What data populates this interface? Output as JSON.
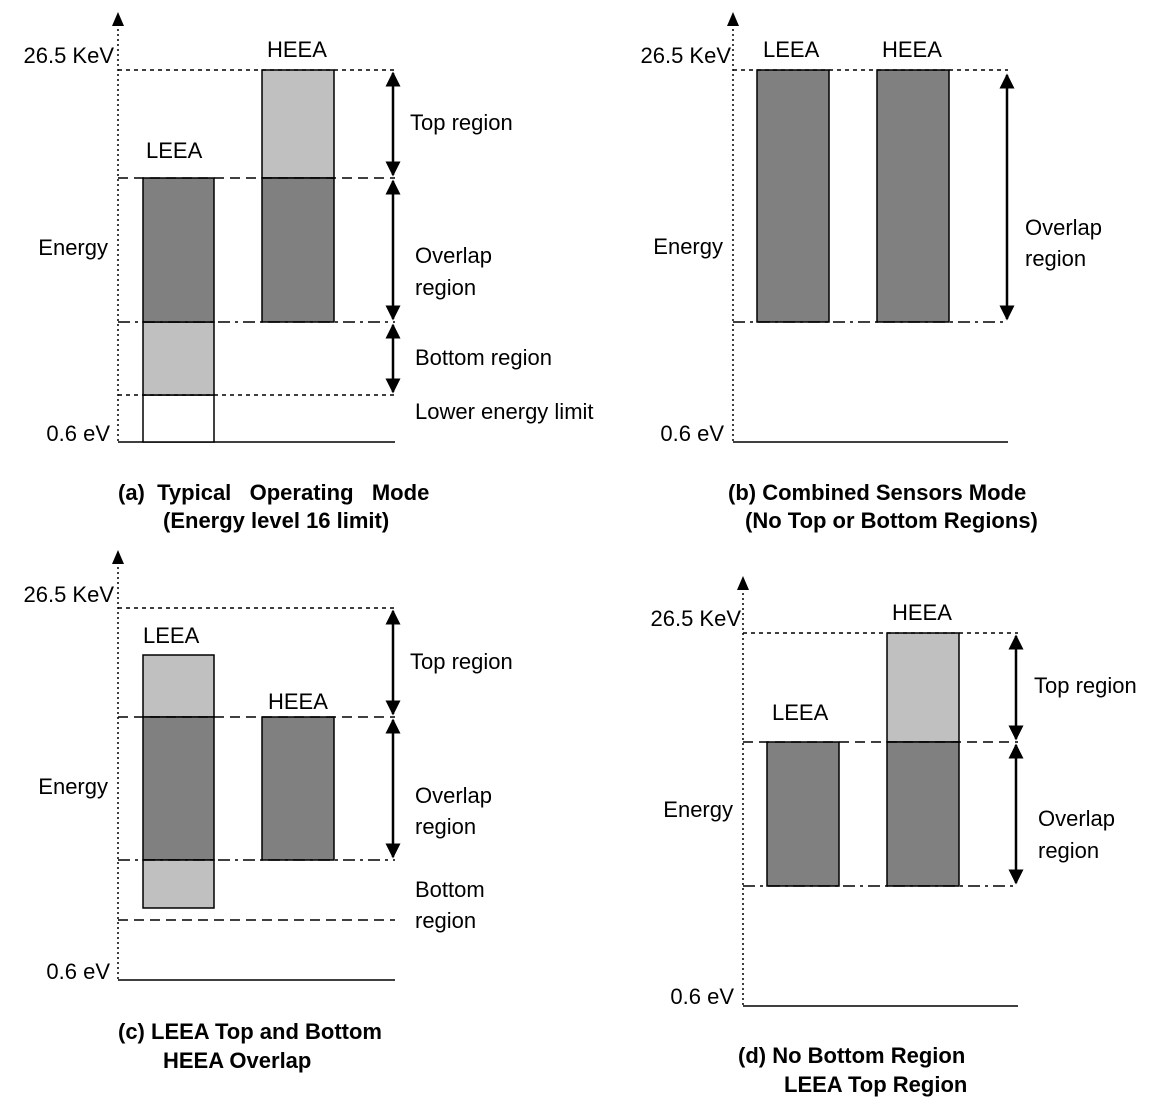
{
  "panels": {
    "a": {
      "top_value": "26.5 KeV",
      "bottom_value": "0.6 eV",
      "energy": "Energy",
      "leea": "LEEA",
      "heea": "HEEA",
      "top_region": "Top region",
      "overlap_1": "Overlap",
      "overlap_2": "region",
      "bottom_region": "Bottom region",
      "lower_limit": "Lower energy limit",
      "caption_1": "(a)  Typical   Operating   Mode",
      "caption_2": "(Energy level 16 limit)"
    },
    "b": {
      "top_value": "26.5 KeV",
      "bottom_value": "0.6 eV",
      "energy": "Energy",
      "leea": "LEEA",
      "heea": "HEEA",
      "overlap_1": "Overlap",
      "overlap_2": "region",
      "caption_1": "(b)  Combined Sensors Mode",
      "caption_2": "(No Top or Bottom Regions)"
    },
    "c": {
      "top_value": "26.5 KeV",
      "bottom_value": "0.6 eV",
      "energy": "Energy",
      "leea": "LEEA",
      "heea": "HEEA",
      "top_region": "Top region",
      "overlap_1": "Overlap",
      "overlap_2": "region",
      "bottom_1": "Bottom",
      "bottom_2": "region",
      "caption_1": "(c)  LEEA Top and Bottom",
      "caption_2": "HEEA Overlap"
    },
    "d": {
      "top_value": "26.5 KeV",
      "bottom_value": "0.6 eV",
      "energy": "Energy",
      "leea": "LEEA",
      "heea": "HEEA",
      "top_region": "Top region",
      "overlap_1": "Overlap",
      "overlap_2": "region",
      "caption_1": "(d)  No Bottom Region",
      "caption_2": "LEEA Top Region"
    }
  },
  "colors": {
    "overlap_fill": "#808080",
    "region_fill": "#c0c0c0",
    "line": "#000000"
  }
}
